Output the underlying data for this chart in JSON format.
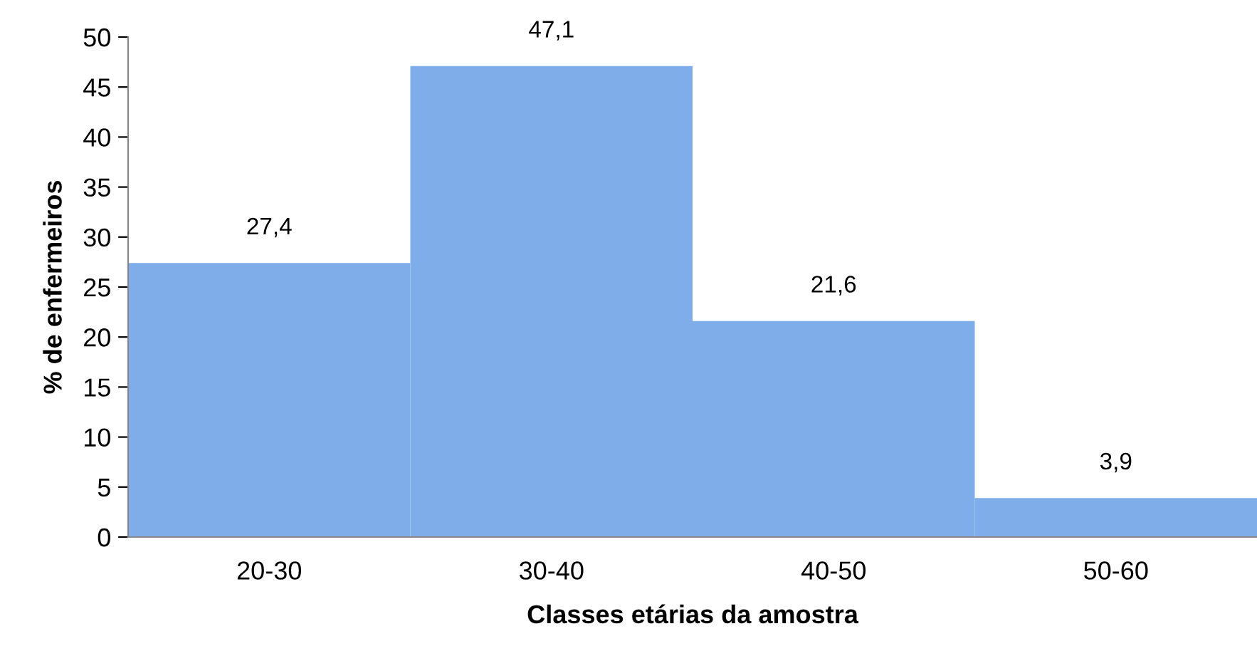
{
  "chart_data": {
    "type": "bar",
    "xlabel": "Classes etárias da amostra",
    "ylabel": "% de enfermeiros",
    "categories": [
      "20-30",
      "30-40",
      "40-50",
      "50-60"
    ],
    "values": [
      27.4,
      47.1,
      21.6,
      3.9
    ],
    "value_labels": [
      "27,4",
      "47,1",
      "21,6",
      "3,9"
    ],
    "color": "#7fadea",
    "ylim": [
      0,
      50
    ],
    "yticks": [
      0,
      5,
      10,
      15,
      20,
      25,
      30,
      35,
      40,
      45,
      50
    ],
    "grid": false,
    "legend": false
  }
}
